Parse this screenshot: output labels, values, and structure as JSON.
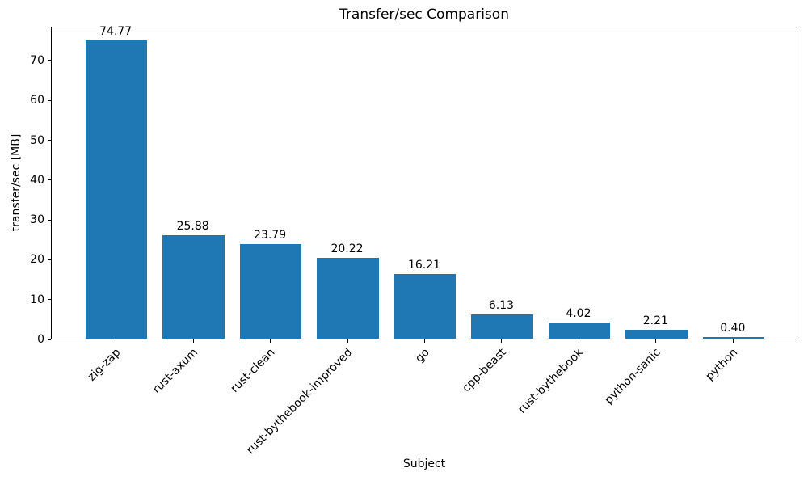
{
  "chart_data": {
    "type": "bar",
    "title": "Transfer/sec Comparison",
    "xlabel": "Subject",
    "ylabel": "transfer/sec [MB]",
    "categories": [
      "zig-zap",
      "rust-axum",
      "rust-clean",
      "rust-bythebook-improved",
      "go",
      "cpp-beast",
      "rust-bythebook",
      "python-sanic",
      "python"
    ],
    "values": [
      74.77,
      25.88,
      23.79,
      20.22,
      16.21,
      6.13,
      4.02,
      2.21,
      0.4
    ],
    "bar_value_labels": [
      "74.77",
      "25.88",
      "23.79",
      "20.22",
      "16.21",
      "6.13",
      "4.02",
      "2.21",
      "0.40"
    ],
    "yticks": [
      0,
      10,
      20,
      30,
      40,
      50,
      60,
      70
    ],
    "ylim": [
      0,
      78.5
    ],
    "bar_color": "#1f77b4",
    "axis_color": "#000000",
    "text_color": "#000000",
    "x_tick_rotation_deg": 45,
    "grid": false,
    "legend_position": "none"
  }
}
